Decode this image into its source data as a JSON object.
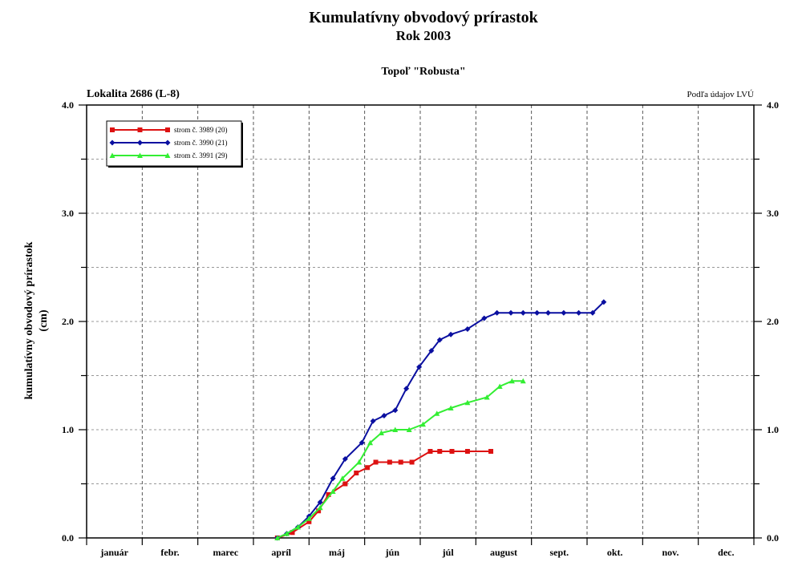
{
  "title": "Kumulatívny obvodový prírastok",
  "subtitle": "Rok 2003",
  "species": "Topoľ \"Robusta\"",
  "location": "Lokalita 2686 (L-8)",
  "source": "Podľa údajov LVÚ",
  "chart_data": {
    "type": "line",
    "title": "Kumulatívny obvodový prírastok",
    "ylabel_line1": "kumulatívny obvodový prírastok",
    "ylabel_line2": "(cm)",
    "xlabel": "",
    "ylim": [
      0,
      4
    ],
    "xlim": [
      0,
      12
    ],
    "grid": true,
    "legend_position": "top-left",
    "y_ticks": [
      "0.0",
      "1.0",
      "2.0",
      "3.0",
      "4.0"
    ],
    "categories": [
      "január",
      "febr.",
      "marec",
      "apríl",
      "máj",
      "jún",
      "júl",
      "august",
      "sept.",
      "okt.",
      "nov.",
      "dec."
    ],
    "series": [
      {
        "name": "strom č. 3989 (20)",
        "color": "#dd1111",
        "marker": "square",
        "x": [
          3.43,
          3.7,
          4.0,
          4.17,
          4.35,
          4.65,
          4.85,
          5.05,
          5.2,
          5.45,
          5.65,
          5.85,
          6.18,
          6.35,
          6.57,
          6.85,
          7.27
        ],
        "y": [
          0.0,
          0.05,
          0.15,
          0.25,
          0.4,
          0.5,
          0.6,
          0.65,
          0.7,
          0.7,
          0.7,
          0.7,
          0.8,
          0.8,
          0.8,
          0.8,
          0.8
        ]
      },
      {
        "name": "strom č. 3990 (21)",
        "color": "#0a0fa0",
        "marker": "diamond",
        "x": [
          3.43,
          3.6,
          3.8,
          4.0,
          4.2,
          4.43,
          4.65,
          4.95,
          5.15,
          5.35,
          5.55,
          5.75,
          5.98,
          6.2,
          6.35,
          6.55,
          6.85,
          7.15,
          7.38,
          7.63,
          7.85,
          8.1,
          8.3,
          8.58,
          8.85,
          9.1,
          9.3
        ],
        "y": [
          0.0,
          0.04,
          0.1,
          0.2,
          0.33,
          0.55,
          0.73,
          0.88,
          1.08,
          1.13,
          1.18,
          1.38,
          1.58,
          1.73,
          1.83,
          1.88,
          1.93,
          2.03,
          2.08,
          2.08,
          2.08,
          2.08,
          2.08,
          2.08,
          2.08,
          2.08,
          2.18
        ]
      },
      {
        "name": "strom č. 3991 (29)",
        "color": "#33ee33",
        "marker": "triangle",
        "x": [
          3.43,
          3.6,
          3.8,
          4.0,
          4.2,
          4.43,
          4.6,
          4.9,
          5.1,
          5.3,
          5.55,
          5.8,
          6.05,
          6.3,
          6.55,
          6.85,
          7.2,
          7.43,
          7.65,
          7.85
        ],
        "y": [
          0.0,
          0.04,
          0.1,
          0.18,
          0.28,
          0.43,
          0.55,
          0.7,
          0.88,
          0.97,
          1.0,
          1.0,
          1.05,
          1.15,
          1.2,
          1.25,
          1.3,
          1.4,
          1.45,
          1.45
        ]
      }
    ]
  }
}
